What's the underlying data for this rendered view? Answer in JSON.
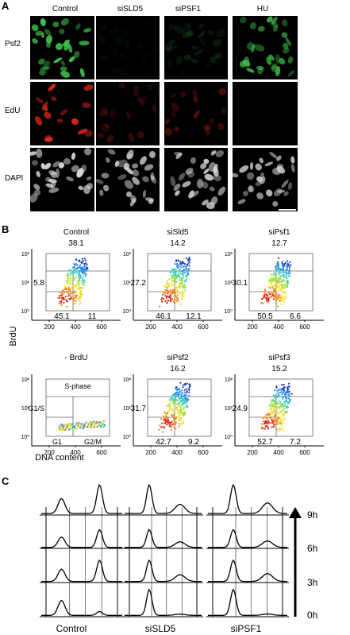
{
  "panels": {
    "a": "A",
    "b": "B",
    "c": "C"
  },
  "panelA": {
    "columns": [
      "Control",
      "siSLD5",
      "siPSF1",
      "HU"
    ],
    "rows": [
      "Psf2",
      "EdU",
      "DAPI"
    ],
    "colors": {
      "Psf2": "#3fbf4a",
      "EdU": "#e02818",
      "DAPI": "#d8d8d8"
    },
    "intensity": [
      [
        1.0,
        0.05,
        0.15,
        0.9
      ],
      [
        1.0,
        0.25,
        0.35,
        0.0
      ],
      [
        1.0,
        0.9,
        0.9,
        0.9
      ]
    ]
  },
  "panelB": {
    "ylabel": "BrdU",
    "xlabel": "DNA content",
    "xticks": [
      "200",
      "400",
      "600"
    ],
    "yticks": [
      "10²",
      "10¹",
      "10⁰"
    ],
    "plots": [
      {
        "title": "Control",
        "top": "38.1",
        "left": "5.8",
        "bl": "45.1",
        "br": "11"
      },
      {
        "title": "siSld5",
        "top": "14.2",
        "left": "27.2",
        "bl": "46.1",
        "br": "12.1"
      },
      {
        "title": "siPsf1",
        "top": "12.7",
        "left": "30.1",
        "bl": "50.5",
        "br": "6.6"
      },
      {
        "title": "- BrdU",
        "gates": [
          "S-phase",
          "G1/S",
          "G1",
          "G2/M"
        ]
      },
      {
        "title": "siPsf2",
        "top": "16.2",
        "left": "31.7",
        "bl": "42.7",
        "br": "9.2"
      },
      {
        "title": "siPsf3",
        "top": "15.2",
        "left": "24.9",
        "bl": "52.7",
        "br": "7.2"
      }
    ]
  },
  "panelC": {
    "columns": [
      "Control",
      "siSLD5",
      "siPSF1"
    ],
    "times": [
      "9h",
      "6h",
      "3h",
      "0h"
    ]
  }
}
